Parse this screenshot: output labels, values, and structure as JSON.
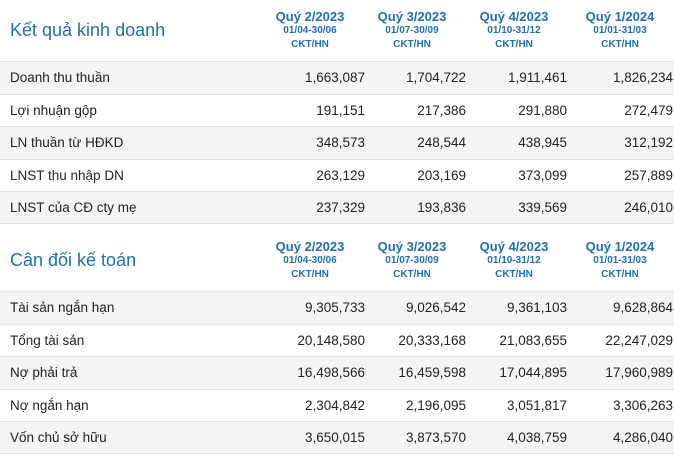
{
  "sections": [
    {
      "title": "Kết quả kinh doanh",
      "columns": [
        {
          "quarter": "Quý 2/2023",
          "range": "01/04-30/06",
          "unit": "CKT/HN"
        },
        {
          "quarter": "Quý 3/2023",
          "range": "01/07-30/09",
          "unit": "CKT/HN"
        },
        {
          "quarter": "Quý 4/2023",
          "range": "01/10-31/12",
          "unit": "CKT/HN"
        },
        {
          "quarter": "Quý 1/2024",
          "range": "01/01-31/03",
          "unit": "CKT/HN"
        }
      ],
      "rows": [
        {
          "label": "Doanh thu thuần",
          "values": [
            "1,663,087",
            "1,704,722",
            "1,911,461",
            "1,826,234"
          ]
        },
        {
          "label": "Lợi nhuận gộp",
          "values": [
            "191,151",
            "217,386",
            "291,880",
            "272,479"
          ]
        },
        {
          "label": "LN thuần từ HĐKD",
          "values": [
            "348,573",
            "248,544",
            "438,945",
            "312,192"
          ]
        },
        {
          "label": "LNST thu nhập DN",
          "values": [
            "263,129",
            "203,169",
            "373,099",
            "257,889"
          ]
        },
        {
          "label": "LNST của CĐ cty mẹ",
          "values": [
            "237,329",
            "193,836",
            "339,569",
            "246,010"
          ]
        }
      ]
    },
    {
      "title": "Cân đối kế toán",
      "columns": [
        {
          "quarter": "Quý 2/2023",
          "range": "01/04-30/06",
          "unit": "CKT/HN"
        },
        {
          "quarter": "Quý 3/2023",
          "range": "01/07-30/09",
          "unit": "CKT/HN"
        },
        {
          "quarter": "Quý 4/2023",
          "range": "01/10-31/12",
          "unit": "CKT/HN"
        },
        {
          "quarter": "Quý 1/2024",
          "range": "01/01-31/03",
          "unit": "CKT/HN"
        }
      ],
      "rows": [
        {
          "label": "Tài sản ngắn hạn",
          "values": [
            "9,305,733",
            "9,026,542",
            "9,361,103",
            "9,628,864"
          ]
        },
        {
          "label": "Tổng tài sản",
          "values": [
            "20,148,580",
            "20,333,168",
            "21,083,655",
            "22,247,029"
          ]
        },
        {
          "label": "Nợ phải trả",
          "values": [
            "16,498,566",
            "16,459,598",
            "17,044,895",
            "17,960,989"
          ]
        },
        {
          "label": "Nợ ngắn hạn",
          "values": [
            "2,304,842",
            "2,196,095",
            "3,051,817",
            "3,306,263"
          ]
        },
        {
          "label": "Vốn chủ sở hữu",
          "values": [
            "3,650,015",
            "3,873,570",
            "4,038,759",
            "4,286,040"
          ]
        }
      ]
    }
  ]
}
